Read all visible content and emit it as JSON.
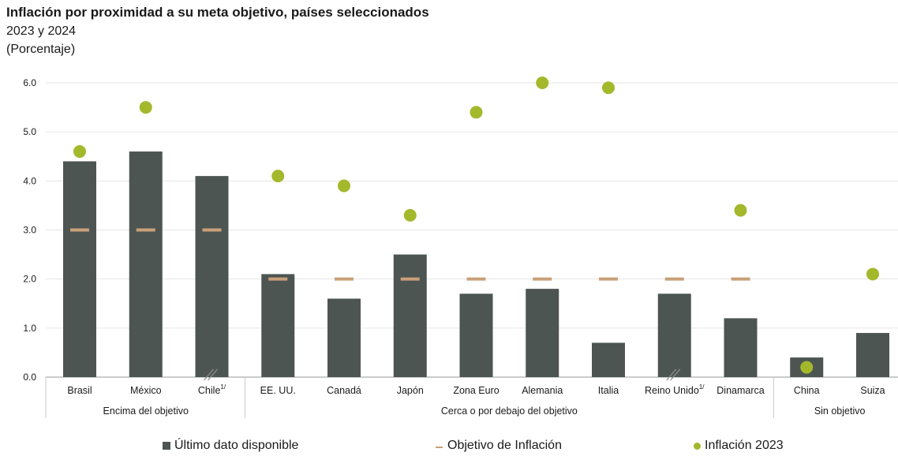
{
  "chart_data": {
    "type": "bar",
    "title": "Inflación por proximidad a su meta objetivo, países seleccionados",
    "subtitle": "2023 y 2024",
    "unit": "(Porcentaje)",
    "ylim": [
      0,
      6
    ],
    "yticks": [
      "0.0",
      "1.0",
      "2.0",
      "3.0",
      "4.0",
      "5.0",
      "6.0"
    ],
    "categories": [
      "Brasil",
      "México",
      "Chile",
      "EE. UU.",
      "Canadá",
      "Japón",
      "Zona Euro",
      "Alemania",
      "Italia",
      "Reino Unido",
      "Dinamarca",
      "China",
      "Suiza"
    ],
    "footnote_marker": "1/",
    "footnoted_categories": [
      "Chile",
      "Reino Unido"
    ],
    "groups": [
      {
        "label": "Encima del objetivo",
        "start": 0,
        "end": 2
      },
      {
        "label": "Cerca o por debajo del objetivo",
        "start": 3,
        "end": 10
      },
      {
        "label": "Sin objetivo",
        "start": 11,
        "end": 12
      }
    ],
    "series": [
      {
        "name": "Último dato disponible",
        "kind": "bar",
        "color": "#4d5553",
        "values": [
          4.4,
          4.6,
          4.1,
          2.1,
          1.6,
          2.5,
          1.7,
          1.8,
          0.7,
          1.7,
          1.2,
          0.4,
          0.9
        ]
      },
      {
        "name": "Objetivo de Inflación",
        "kind": "dash",
        "color": "#c9a078",
        "values": [
          3.0,
          3.0,
          3.0,
          2.0,
          2.0,
          2.0,
          2.0,
          2.0,
          2.0,
          2.0,
          2.0,
          null,
          null
        ]
      },
      {
        "name": "Inflación 2023",
        "kind": "dot",
        "color": "#a4b82c",
        "values": [
          4.6,
          5.5,
          null,
          4.1,
          3.9,
          3.3,
          5.4,
          6.0,
          5.9,
          null,
          3.4,
          0.2,
          2.1
        ]
      }
    ],
    "grid": true,
    "legend": "bottom"
  }
}
